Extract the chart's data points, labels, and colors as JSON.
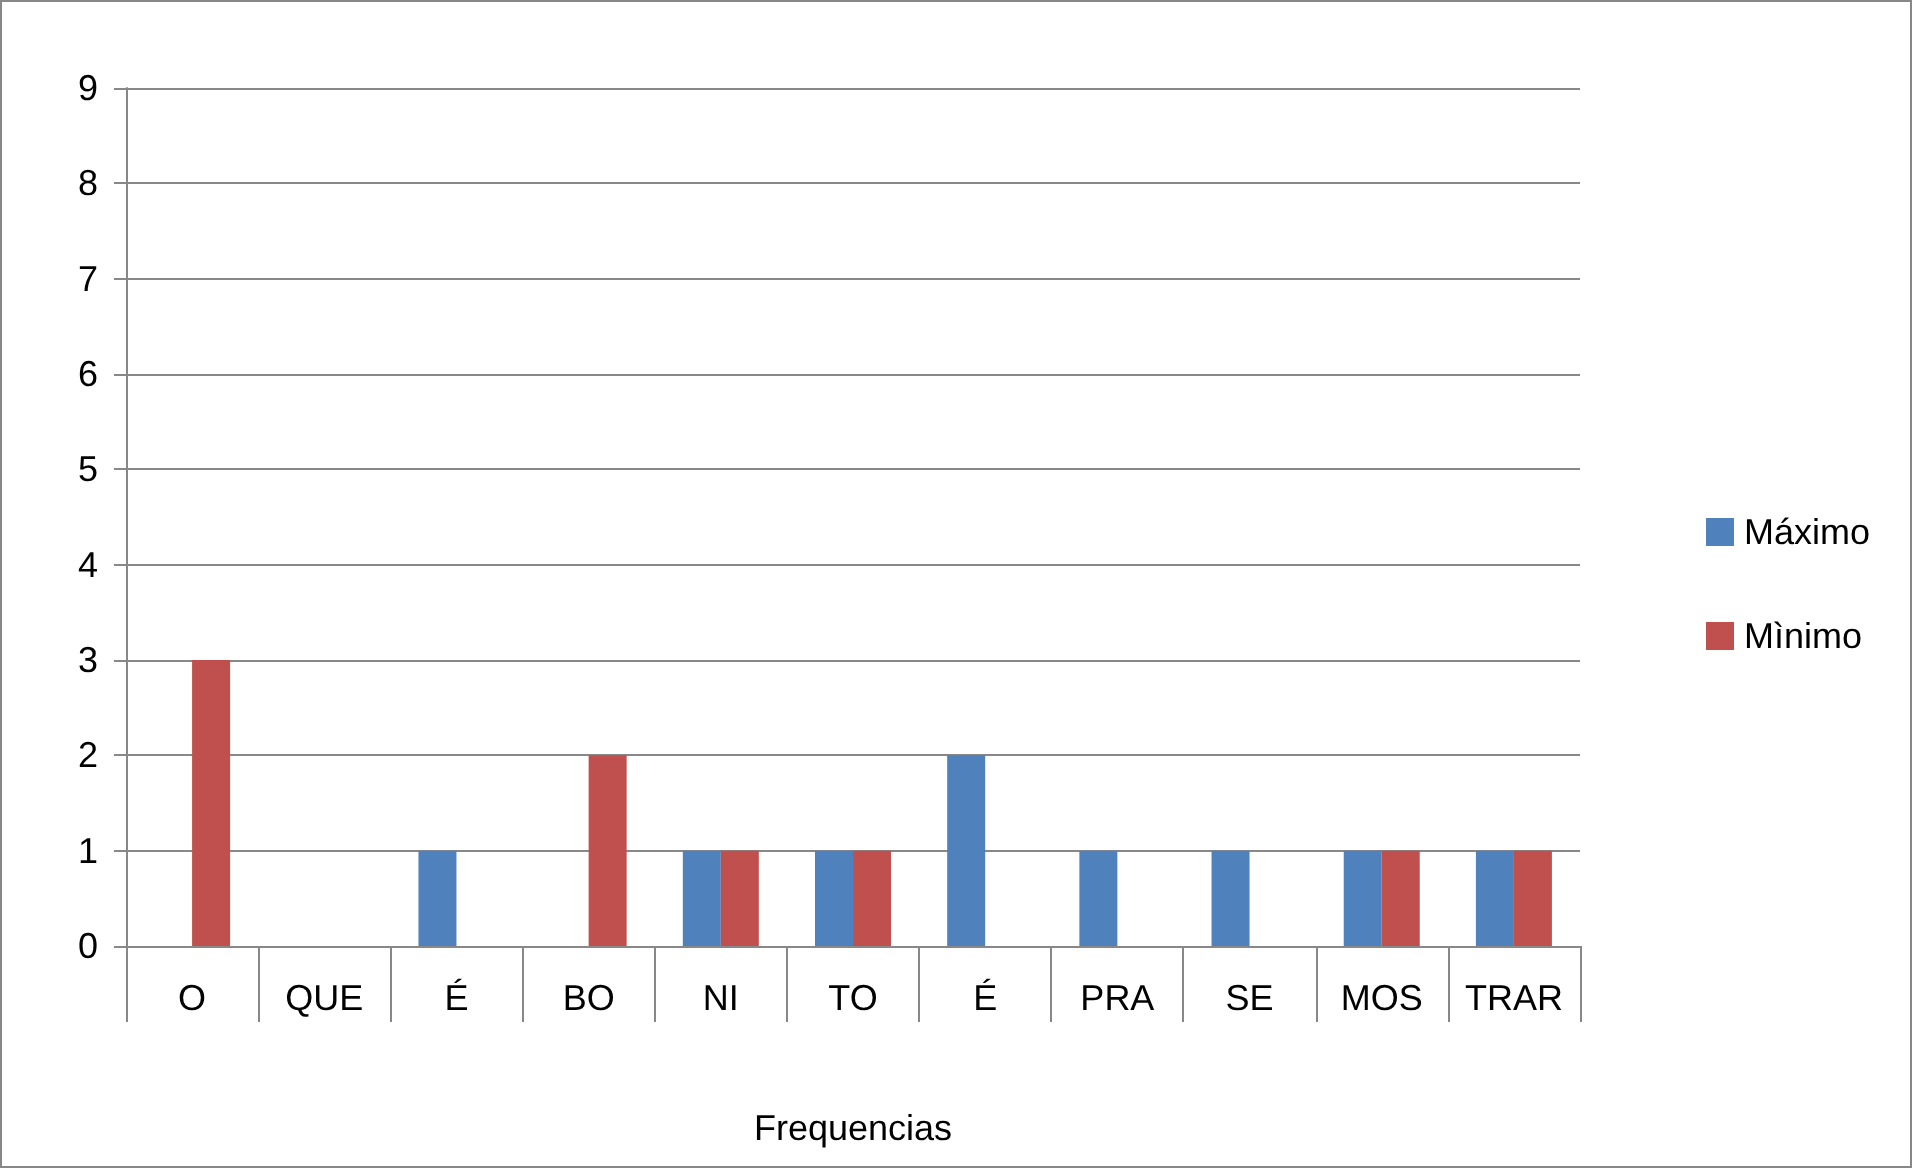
{
  "chart_data": {
    "type": "bar",
    "xlabel": "Frequencias",
    "categories": [
      "O",
      "QUE",
      "É",
      "BO",
      "NI",
      "TO",
      "É",
      "PRA",
      "SE",
      "MOS",
      "TRAR"
    ],
    "series": [
      {
        "name": "Máximo",
        "color": "#4f81bd",
        "values": [
          0,
          0,
          1,
          0,
          1,
          1,
          2,
          1,
          1,
          1,
          1
        ]
      },
      {
        "name": "Mìnimo",
        "color": "#c0504d",
        "values": [
          3,
          0,
          0,
          2,
          1,
          1,
          0,
          0,
          0,
          1,
          1
        ]
      }
    ],
    "ylim": [
      0,
      9
    ],
    "yticks": [
      0,
      1,
      2,
      3,
      4,
      5,
      6,
      7,
      8,
      9
    ],
    "grid": "y",
    "legend": "right"
  }
}
